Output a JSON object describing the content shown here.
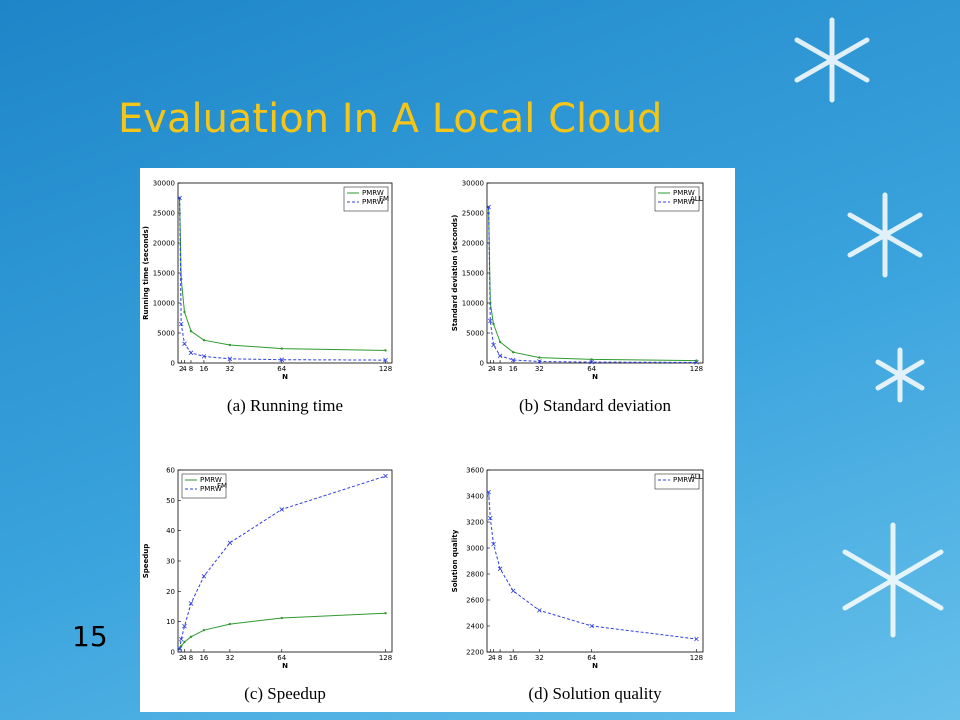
{
  "slide": {
    "title": "Evaluation In A Local Cloud",
    "page_number": "15"
  },
  "chart_data": [
    {
      "type": "line",
      "caption": "(a) Running time",
      "xlabel": "N",
      "ylabel": "Running time (seconds)",
      "x": [
        1,
        2,
        4,
        8,
        16,
        32,
        64,
        128
      ],
      "xlim": [
        0,
        132
      ],
      "xticks": [
        2,
        4,
        8,
        16,
        32,
        64,
        128
      ],
      "ylim": [
        0,
        30000
      ],
      "yticks": [
        0,
        5000,
        10000,
        15000,
        20000,
        25000,
        30000
      ],
      "legend": "upper right",
      "series": [
        {
          "name": "PMRW",
          "color": "#2e9a2e",
          "linestyle": "solid",
          "marker": "dot",
          "values": [
            27500,
            14000,
            8500,
            5300,
            3800,
            3000,
            2400,
            2100
          ]
        },
        {
          "name": "PMRW",
          "name_sup": "FM",
          "color": "#2f3fe0",
          "linestyle": "dashed",
          "marker": "x",
          "values": [
            27500,
            6500,
            3200,
            1700,
            1100,
            700,
            550,
            480
          ]
        }
      ]
    },
    {
      "type": "line",
      "caption": "(b) Standard deviation",
      "xlabel": "N",
      "ylabel": "Standard deviation (seconds)",
      "x": [
        1,
        2,
        4,
        8,
        16,
        32,
        64,
        128
      ],
      "xlim": [
        0,
        132
      ],
      "xticks": [
        2,
        4,
        8,
        16,
        32,
        64,
        128
      ],
      "ylim": [
        0,
        30000
      ],
      "yticks": [
        0,
        5000,
        10000,
        15000,
        20000,
        25000,
        30000
      ],
      "legend": "upper right",
      "series": [
        {
          "name": "PMRW",
          "color": "#2e9a2e",
          "linestyle": "solid",
          "marker": "dot",
          "values": [
            26000,
            10000,
            6500,
            3500,
            1800,
            900,
            600,
            400
          ]
        },
        {
          "name": "PMRW",
          "name_sup": "ALL",
          "color": "#2f3fe0",
          "linestyle": "dashed",
          "marker": "x",
          "values": [
            26000,
            7000,
            3000,
            1200,
            500,
            250,
            150,
            100
          ]
        }
      ]
    },
    {
      "type": "line",
      "caption": "(c) Speedup",
      "xlabel": "N",
      "ylabel": "Speedup",
      "x": [
        1,
        2,
        4,
        8,
        16,
        32,
        64,
        128
      ],
      "xlim": [
        0,
        132
      ],
      "xticks": [
        2,
        4,
        8,
        16,
        32,
        64,
        128
      ],
      "ylim": [
        0,
        60
      ],
      "yticks": [
        0,
        10,
        20,
        30,
        40,
        50,
        60
      ],
      "legend": "upper left",
      "series": [
        {
          "name": "PMRW",
          "color": "#2e9a2e",
          "linestyle": "solid",
          "marker": "dot",
          "values": [
            1,
            2,
            3.3,
            5,
            7.2,
            9.2,
            11.2,
            12.8
          ]
        },
        {
          "name": "PMRW",
          "name_sup": "FM",
          "color": "#2f3fe0",
          "linestyle": "dashed",
          "marker": "x",
          "values": [
            1,
            4.2,
            8.5,
            16,
            25,
            36,
            47,
            58
          ]
        }
      ]
    },
    {
      "type": "line",
      "caption": "(d) Solution quality",
      "xlabel": "N",
      "ylabel": "Solution quality",
      "x": [
        1,
        2,
        4,
        8,
        16,
        32,
        64,
        128
      ],
      "xlim": [
        0,
        132
      ],
      "xticks": [
        2,
        4,
        8,
        16,
        32,
        64,
        128
      ],
      "ylim": [
        2200,
        3600
      ],
      "yticks": [
        2200,
        2400,
        2600,
        2800,
        3000,
        3200,
        3400,
        3600
      ],
      "legend": "upper right",
      "series": [
        {
          "name": "PMRW",
          "name_sup": "ALL",
          "color": "#2f3fe0",
          "linestyle": "dashed",
          "marker": "x",
          "values": [
            3430,
            3230,
            3030,
            2840,
            2670,
            2520,
            2400,
            2300
          ]
        }
      ]
    }
  ]
}
